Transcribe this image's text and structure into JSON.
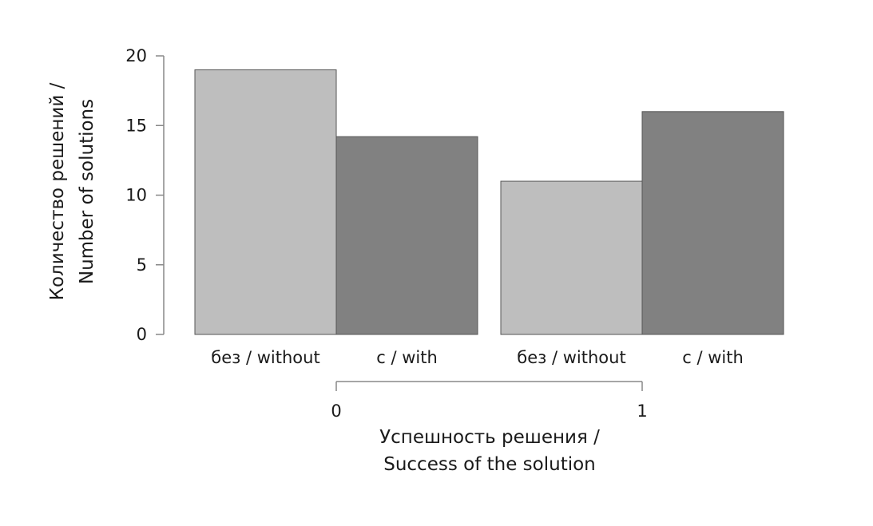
{
  "chart_data": {
    "type": "bar",
    "ylabel": [
      "Количество решений /",
      "Number of solutions"
    ],
    "xlabel": [
      "Успешность решения /",
      "Success of the solution"
    ],
    "ylim": [
      0,
      20
    ],
    "yticks": [
      0,
      5,
      10,
      15,
      20
    ],
    "groups": [
      {
        "name": "0",
        "bars": [
          {
            "label": "без / without",
            "value": 19,
            "series": 0
          },
          {
            "label": "с / with",
            "value": 14.2,
            "series": 1
          }
        ]
      },
      {
        "name": "1",
        "bars": [
          {
            "label": "без / without",
            "value": 11,
            "series": 0
          },
          {
            "label": "с / with",
            "value": 16,
            "series": 1
          }
        ]
      }
    ],
    "series_colors": [
      "#bebebe",
      "#818181"
    ],
    "grid": false,
    "legend": "none"
  }
}
